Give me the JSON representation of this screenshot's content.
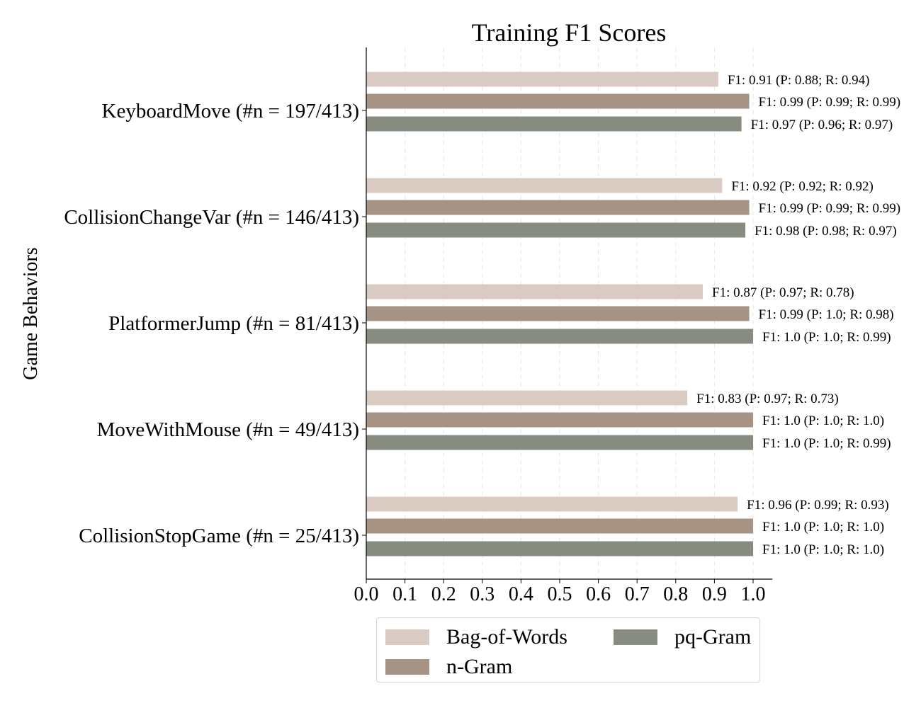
{
  "chart_data": {
    "type": "bar",
    "orientation": "horizontal",
    "title": "Training F1 Scores",
    "ylabel": "Game Behaviors",
    "xlabel": "",
    "xlim": [
      0,
      1.05
    ],
    "xticks": [
      "0.0",
      "0.1",
      "0.2",
      "0.3",
      "0.4",
      "0.5",
      "0.6",
      "0.7",
      "0.8",
      "0.9",
      "1.0"
    ],
    "grid": "vertical dashed",
    "legend_position": "bottom-center",
    "categories": [
      "KeyboardMove (#n = 197/413)",
      "CollisionChangeVar (#n = 146/413)",
      "PlatformerJump (#n = 81/413)",
      "MoveWithMouse (#n = 49/413)",
      "CollisionStopGame (#n = 25/413)"
    ],
    "series": [
      {
        "name": "Bag-of-Words",
        "color": "#d9cbc2",
        "values": [
          0.91,
          0.92,
          0.87,
          0.83,
          0.96
        ],
        "labels": [
          "F1: 0.91 (P: 0.88; R: 0.94)",
          "F1: 0.92 (P: 0.92; R: 0.92)",
          "F1: 0.87 (P: 0.97; R: 0.78)",
          "F1: 0.83 (P: 0.97; R: 0.73)",
          "F1: 0.96 (P: 0.99; R: 0.93)"
        ]
      },
      {
        "name": "n-Gram",
        "color": "#a69384",
        "values": [
          0.99,
          0.99,
          0.99,
          1.0,
          1.0
        ],
        "labels": [
          "F1: 0.99 (P: 0.99; R: 0.99)",
          "F1: 0.99 (P: 0.99; R: 0.99)",
          "F1: 0.99 (P: 1.0; R: 0.98)",
          "F1: 1.0 (P: 1.0; R: 1.0)",
          "F1: 1.0 (P: 1.0; R: 1.0)"
        ]
      },
      {
        "name": "pq-Gram",
        "color": "#878c81",
        "values": [
          0.97,
          0.98,
          1.0,
          1.0,
          1.0
        ],
        "labels": [
          "F1: 0.97 (P: 0.96; R: 0.97)",
          "F1: 0.98 (P: 0.98; R: 0.97)",
          "F1: 1.0 (P: 1.0; R: 0.99)",
          "F1: 1.0 (P: 1.0; R: 0.99)",
          "F1: 1.0 (P: 1.0; R: 1.0)"
        ]
      }
    ]
  }
}
